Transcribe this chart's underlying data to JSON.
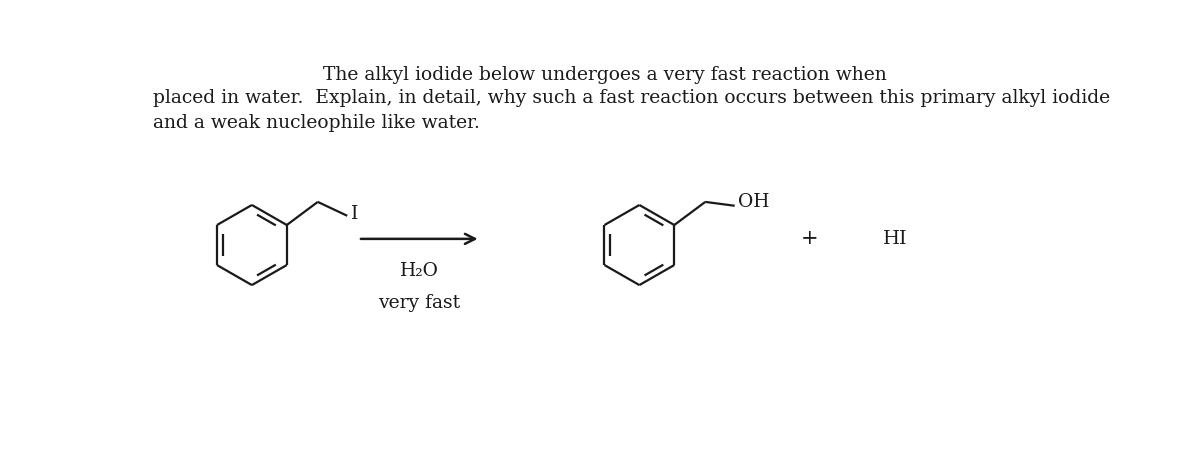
{
  "title_line1": "The alkyl iodide below undergoes a very fast reaction when",
  "title_line2": "placed in water.  Explain, in detail, why such a fast reaction occurs between this primary alkyl iodide",
  "title_line3": "and a weak nucleophile like water.",
  "reagent": "H₂O",
  "condition": "very fast",
  "plus": "+",
  "byproduct": "HI",
  "bg_color": "#ffffff",
  "text_color": "#1a1a1a",
  "line_color": "#1a1a1a",
  "font_size_title": 13.5,
  "font_size_labels": 13.5,
  "fig_width": 11.78,
  "fig_height": 4.57
}
